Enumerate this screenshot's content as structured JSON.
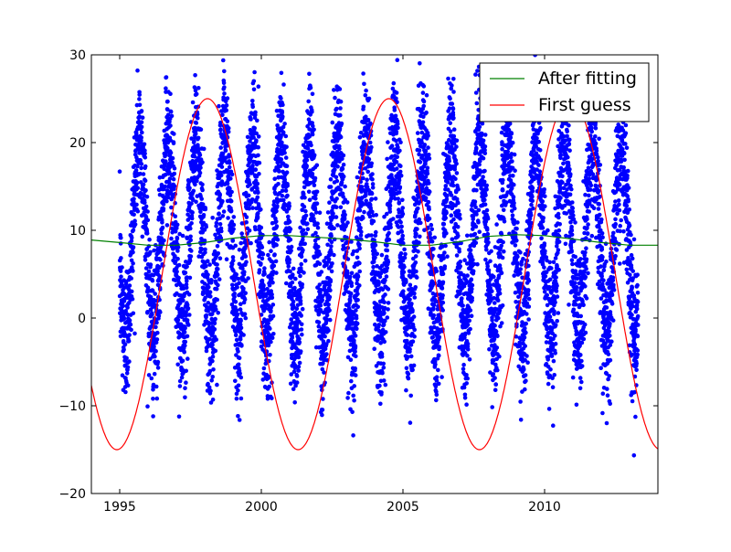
{
  "chart_data": {
    "type": "scatter",
    "title": "",
    "xlabel": "",
    "ylabel": "",
    "xlim": [
      1994,
      2014
    ],
    "ylim": [
      -20,
      30
    ],
    "x_ticks": [
      1995,
      2000,
      2005,
      2010
    ],
    "y_ticks": [
      -20,
      -10,
      0,
      10,
      20,
      30
    ],
    "grid": false,
    "legend_position": "upper right",
    "scatter_series": {
      "color": "#0000ff",
      "description": "daily observations, seasonal cycle roughly -10 to 25 each year, 1995 to 2013",
      "seasonal_mean": 9,
      "seasonal_amplitude": 11,
      "noise": 4,
      "x_start": 1995.0,
      "x_end": 2013.3
    },
    "series": [
      {
        "name": "After fitting",
        "color": "#008000",
        "x": [
          1994,
          1995,
          1996,
          1997,
          1998,
          1999,
          2000,
          2001,
          2002,
          2003,
          2004,
          2005,
          2006,
          2007,
          2008,
          2009,
          2010,
          2011,
          2012,
          2013,
          2014
        ],
        "y": [
          8.9,
          8.6,
          8.3,
          8.3,
          8.6,
          9.1,
          9.4,
          9.4,
          9.2,
          9.0,
          8.7,
          8.3,
          8.3,
          8.7,
          9.3,
          9.5,
          9.4,
          9.0,
          8.6,
          8.3,
          8.3
        ]
      },
      {
        "name": "First guess",
        "color": "#ff0000",
        "type": "sine",
        "mean": 5,
        "amplitude": 20,
        "period": 6.4,
        "peak_x": 1998.1
      }
    ]
  }
}
